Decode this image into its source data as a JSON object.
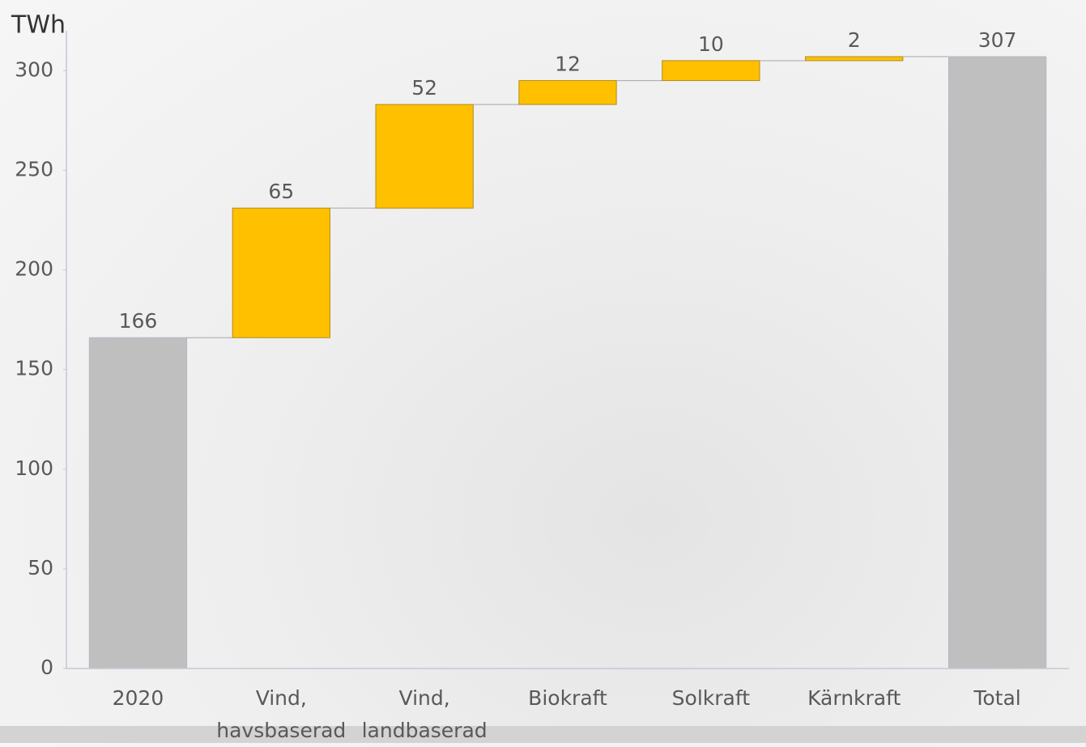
{
  "chart_data": {
    "type": "waterfall",
    "y_label": "TWh",
    "categories": [
      "2020",
      "Vind, havsbaserad",
      "Vind, landbaserad",
      "Biokraft",
      "Solkraft",
      "Kärnkraft",
      "Total"
    ],
    "values": [
      166,
      65,
      52,
      12,
      10,
      2,
      307
    ],
    "measures": [
      "absolute",
      "relative",
      "relative",
      "relative",
      "relative",
      "relative",
      "total"
    ],
    "total_color": "#bfbfbf",
    "increase_color": "#ffc000",
    "ylim": [
      0,
      320
    ],
    "yticks": [
      0,
      50,
      100,
      150,
      200,
      250,
      300
    ]
  }
}
